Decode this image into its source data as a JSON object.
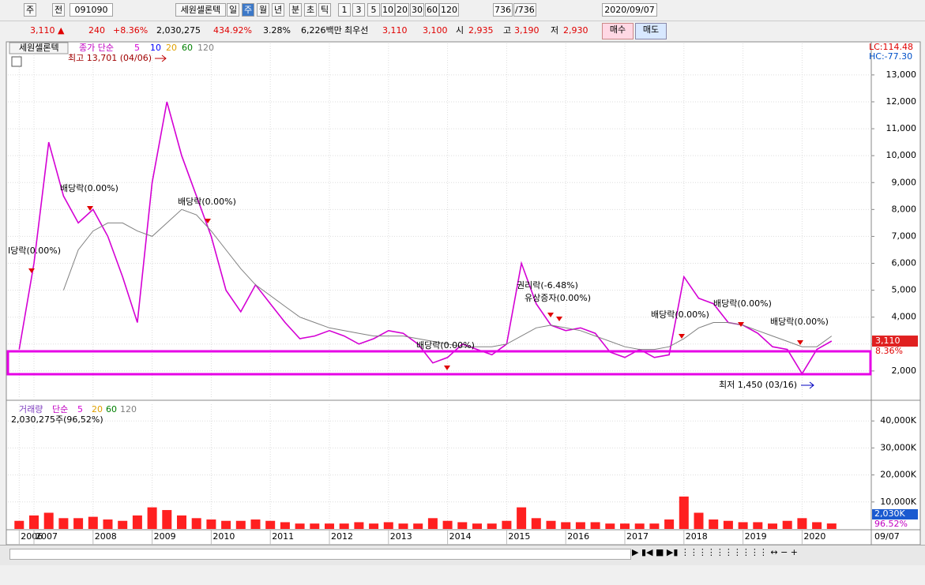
{
  "toolbar": {
    "items": [
      "주",
      "전",
      "091090",
      "세원셀론텍",
      "일",
      "주",
      "월",
      "년",
      "분",
      "초",
      "틱",
      "1",
      "3",
      "5",
      "10",
      "20",
      "30",
      "60",
      "120",
      "736",
      "/736",
      "2020/09/07"
    ]
  },
  "quote": {
    "items": [
      "3,110 ▲",
      "240",
      "+8.36%",
      "2,030,275",
      "434.92%",
      "3.28%",
      "6,226백만",
      "최우선",
      "3,110",
      "3,100",
      "시",
      "2,935",
      "고",
      "3,190",
      "저",
      "2,930"
    ],
    "buy": "매수",
    "sell": "매도"
  },
  "chart_data": [
    {
      "type": "line",
      "name": "세원셀론텍",
      "legend_label": "종가 단순",
      "categories": [
        "2006",
        "2007",
        null,
        null,
        null,
        "2008",
        null,
        null,
        null,
        "2009",
        null,
        null,
        null,
        "2010",
        null,
        null,
        null,
        "2011",
        null,
        null,
        null,
        "2012",
        null,
        null,
        null,
        "2013",
        null,
        null,
        null,
        "2014",
        null,
        null,
        null,
        "2015",
        null,
        null,
        null,
        "2016",
        null,
        null,
        null,
        "2017",
        null,
        null,
        null,
        "2018",
        null,
        null,
        null,
        "2019",
        null,
        null,
        null,
        "2020",
        null,
        null
      ],
      "series": [
        {
          "name": "5",
          "color": "#d400d4",
          "values": [
            2800,
            6000,
            10500,
            8500,
            7500,
            8000,
            7000,
            5500,
            3800,
            9000,
            12000,
            10000,
            8500,
            7000,
            5000,
            4200,
            5200,
            4500,
            3800,
            3200,
            3300,
            3500,
            3300,
            3000,
            3200,
            3500,
            3400,
            3000,
            2300,
            2500,
            3000,
            2800,
            2600,
            3000,
            6000,
            4500,
            3700,
            3500,
            3600,
            3400,
            2700,
            2500,
            2800,
            2500,
            2600,
            5500,
            4700,
            4500,
            3800,
            3700,
            3400,
            2900,
            2800,
            1900,
            2800,
            3110
          ]
        },
        {
          "name": "120",
          "color": "#808080",
          "values": [
            null,
            null,
            null,
            5000,
            6500,
            7200,
            7500,
            7500,
            7200,
            7000,
            7500,
            8000,
            7800,
            7200,
            6500,
            5800,
            5200,
            4800,
            4400,
            4000,
            3800,
            3600,
            3500,
            3400,
            3300,
            3300,
            3300,
            3200,
            3100,
            3000,
            2900,
            2900,
            2900,
            3000,
            3300,
            3600,
            3700,
            3600,
            3500,
            3300,
            3100,
            2900,
            2800,
            2800,
            2900,
            3200,
            3600,
            3800,
            3800,
            3700,
            3500,
            3300,
            3100,
            2900,
            2900,
            3300
          ]
        }
      ],
      "legend_extra": [
        {
          "label": "10",
          "color": "#0000ff"
        },
        {
          "label": "20",
          "color": "#e0a000"
        },
        {
          "label": "60",
          "color": "#008000"
        }
      ],
      "ylim": [
        970,
        14170
      ],
      "yticks": [
        {
          "value": 2000,
          "label": "2,000"
        },
        {
          "value": 3000,
          "label": "3,000"
        },
        {
          "value": 4000,
          "label": "4,000"
        },
        {
          "value": 5000,
          "label": "5,000"
        },
        {
          "value": 6000,
          "label": "6,000"
        },
        {
          "value": 7000,
          "label": "7,000"
        },
        {
          "value": 8000,
          "label": "8,000"
        },
        {
          "value": 9000,
          "label": "9,000"
        },
        {
          "value": 10000,
          "label": "10,000"
        },
        {
          "value": 11000,
          "label": "11,000"
        },
        {
          "value": 12000,
          "label": "12,000"
        },
        {
          "value": 13000,
          "label": "13,000"
        }
      ],
      "grid": true,
      "annotations": [
        "최고 13,701 (04/06)",
        "I당락(0.00%)",
        "배당락(0.00%)",
        "배당락(0.00%)",
        "권리락(-6.48%)",
        "유상증자(0.00%)",
        "배당락(0.00%)",
        "배당락(0.00%)",
        "배당락(0.00%)",
        "배당락(0.00%)",
        "최저 1,450 (03/16)"
      ],
      "top_label": "LC:114.48",
      "bottom_label": "HC:-77.30",
      "last_label": "3,110",
      "last_change": "8.36%"
    },
    {
      "type": "bar",
      "name": "거래량",
      "legend_label": "단순",
      "color": "#ff2020",
      "values": [
        3000,
        5000,
        6000,
        4000,
        4000,
        4500,
        3500,
        3000,
        5000,
        8000,
        7000,
        5000,
        4000,
        3500,
        3000,
        3000,
        3500,
        3000,
        2500,
        2000,
        2000,
        2000,
        2000,
        2500,
        2000,
        2500,
        2000,
        2000,
        4000,
        3000,
        2500,
        2000,
        2000,
        3000,
        8000,
        4000,
        3000,
        2500,
        2500,
        2500,
        2000,
        2000,
        2000,
        2000,
        3500,
        12000,
        6000,
        3500,
        3000,
        2500,
        2500,
        2000,
        3000,
        4000,
        2500,
        2030
      ],
      "legend": [
        {
          "label": "5",
          "color": "#d400d4"
        },
        {
          "label": "20",
          "color": "#e0a000"
        },
        {
          "label": "60",
          "color": "#008000"
        },
        {
          "label": "120",
          "color": "#808080"
        }
      ],
      "summary": "2,030,275주(96,52%)",
      "ylim": [
        0,
        46200
      ],
      "yticks": [
        {
          "value": 10000,
          "label": "10,000K"
        },
        {
          "value": 20000,
          "label": "20,000K"
        },
        {
          "value": 30000,
          "label": "30,000K"
        },
        {
          "value": 40000,
          "label": "40,000K"
        }
      ],
      "grid": true,
      "last_label": "2,030K",
      "last_ratio": "96.52%"
    }
  ],
  "footer": {
    "date": "09/07"
  }
}
